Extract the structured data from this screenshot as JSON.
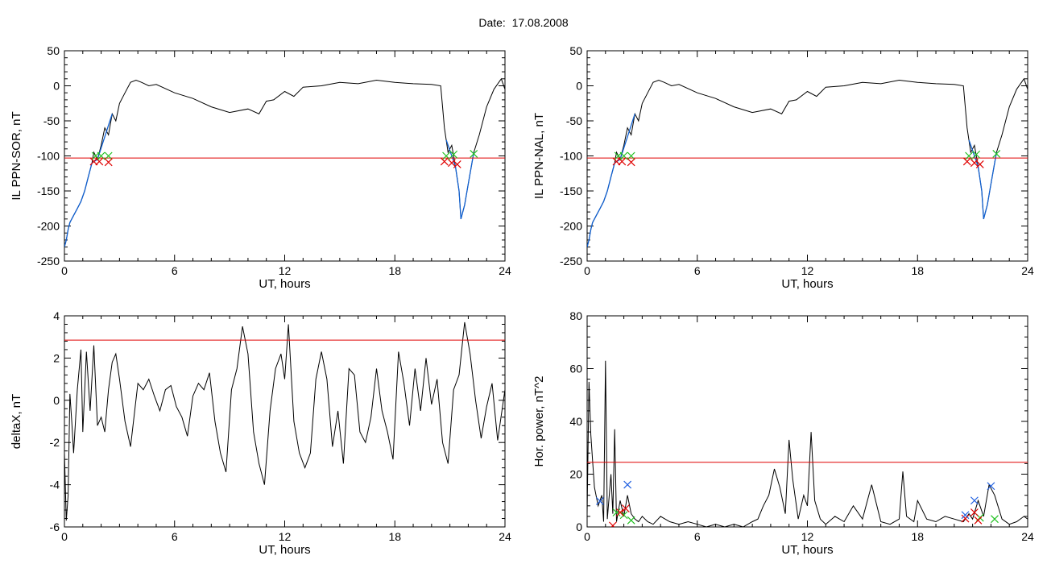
{
  "page": {
    "title": "Date:  17.08.2008"
  },
  "colors": {
    "signal": "#000000",
    "threshold": "#e00000",
    "below": "#1060d0",
    "x_red": "#e00000",
    "x_green": "#20c020",
    "x_blue": "#2060e0"
  },
  "chart_data": [
    {
      "type": "line",
      "name": "sor",
      "ylabel": "IL PPN-SOR, nT",
      "xlabel": "UT, hours",
      "xlim": [
        0,
        24
      ],
      "ylim": [
        -250,
        50
      ],
      "xticks": [
        0,
        6,
        12,
        18,
        24
      ],
      "yticks": [
        -250,
        -200,
        -150,
        -100,
        -50,
        0,
        50
      ],
      "threshold": -103,
      "x": [
        0,
        0.1,
        0.2,
        0.3,
        0.5,
        0.7,
        0.9,
        1.1,
        1.3,
        1.5,
        1.6,
        1.8,
        2.0,
        2.2,
        2.4,
        2.6,
        2.8,
        3.0,
        3.3,
        3.6,
        3.9,
        4.2,
        4.6,
        5.0,
        6,
        7,
        8,
        9,
        10,
        10.6,
        11,
        11.4,
        12,
        12.5,
        13,
        14,
        15,
        16,
        17,
        18,
        19,
        20,
        20.5,
        20.7,
        20.9,
        21.1,
        21.3,
        21.5,
        21.6,
        21.8,
        22.0,
        22.3,
        22.6,
        23.0,
        23.4,
        23.8,
        24
      ],
      "y": [
        -230,
        -220,
        -205,
        -195,
        -185,
        -175,
        -165,
        -150,
        -130,
        -110,
        -95,
        -105,
        -85,
        -60,
        -70,
        -40,
        -50,
        -25,
        -10,
        5,
        8,
        5,
        0,
        2,
        -10,
        -18,
        -30,
        -38,
        -33,
        -40,
        -22,
        -20,
        -8,
        -15,
        -2,
        0,
        5,
        3,
        8,
        5,
        3,
        2,
        0,
        -60,
        -95,
        -85,
        -115,
        -150,
        -190,
        -170,
        -140,
        -95,
        -70,
        -30,
        -5,
        10,
        -5
      ],
      "below_segments": [
        [
          0,
          2.6
        ],
        [
          20.8,
          22.3
        ]
      ],
      "markers_red": [
        [
          1.6,
          -108
        ],
        [
          1.9,
          -108
        ],
        [
          2.4,
          -109
        ],
        [
          20.7,
          -108
        ],
        [
          21.1,
          -110
        ],
        [
          21.4,
          -112
        ]
      ],
      "markers_green": [
        [
          1.7,
          -100
        ],
        [
          2.0,
          -100
        ],
        [
          2.4,
          -100
        ],
        [
          20.8,
          -100
        ],
        [
          21.2,
          -98
        ],
        [
          22.3,
          -97
        ]
      ]
    },
    {
      "type": "line",
      "name": "nal",
      "ylabel": "IL PPN-NAL, nT",
      "xlabel": "UT, hours",
      "xlim": [
        0,
        24
      ],
      "ylim": [
        -250,
        50
      ],
      "xticks": [
        0,
        6,
        12,
        18,
        24
      ],
      "yticks": [
        -250,
        -200,
        -150,
        -100,
        -50,
        0,
        50
      ],
      "threshold": -103,
      "x": [
        0,
        0.1,
        0.2,
        0.3,
        0.5,
        0.7,
        0.9,
        1.1,
        1.3,
        1.5,
        1.6,
        1.8,
        2.0,
        2.2,
        2.4,
        2.6,
        2.8,
        3.0,
        3.3,
        3.6,
        3.9,
        4.2,
        4.6,
        5.0,
        6,
        7,
        8,
        9,
        10,
        10.6,
        11,
        11.4,
        12,
        12.5,
        13,
        14,
        15,
        16,
        17,
        18,
        19,
        20,
        20.5,
        20.7,
        20.9,
        21.1,
        21.3,
        21.5,
        21.6,
        21.8,
        22.0,
        22.3,
        22.6,
        23.0,
        23.4,
        23.8,
        24
      ],
      "y": [
        -230,
        -220,
        -205,
        -195,
        -185,
        -175,
        -165,
        -150,
        -130,
        -110,
        -95,
        -105,
        -85,
        -60,
        -70,
        -40,
        -50,
        -25,
        -10,
        5,
        8,
        5,
        0,
        2,
        -10,
        -18,
        -30,
        -38,
        -33,
        -40,
        -22,
        -20,
        -8,
        -15,
        -2,
        0,
        5,
        3,
        8,
        5,
        3,
        2,
        0,
        -60,
        -95,
        -85,
        -115,
        -150,
        -190,
        -170,
        -140,
        -95,
        -70,
        -30,
        -5,
        10,
        -5
      ],
      "below_segments": [
        [
          0,
          2.6
        ],
        [
          20.8,
          22.3
        ]
      ],
      "markers_red": [
        [
          1.6,
          -108
        ],
        [
          1.9,
          -108
        ],
        [
          2.4,
          -109
        ],
        [
          20.7,
          -108
        ],
        [
          21.1,
          -110
        ],
        [
          21.4,
          -112
        ]
      ],
      "markers_green": [
        [
          1.7,
          -100
        ],
        [
          2.0,
          -100
        ],
        [
          2.4,
          -100
        ],
        [
          20.8,
          -100
        ],
        [
          21.2,
          -98
        ],
        [
          22.3,
          -97
        ]
      ]
    },
    {
      "type": "line",
      "name": "deltax",
      "ylabel": "deltaX, nT",
      "xlabel": "UT, hours",
      "xlim": [
        0,
        24
      ],
      "ylim": [
        -6,
        4
      ],
      "xticks": [
        0,
        6,
        12,
        18,
        24
      ],
      "yticks": [
        -6,
        -4,
        -2,
        0,
        2,
        4
      ],
      "threshold": 2.85,
      "x": [
        0,
        0.1,
        0.2,
        0.3,
        0.4,
        0.5,
        0.7,
        0.9,
        1.0,
        1.2,
        1.4,
        1.6,
        1.8,
        2.0,
        2.2,
        2.4,
        2.6,
        2.8,
        3.0,
        3.3,
        3.6,
        4.0,
        4.3,
        4.6,
        4.9,
        5.2,
        5.5,
        5.8,
        6.1,
        6.4,
        6.7,
        7.0,
        7.3,
        7.6,
        7.9,
        8.2,
        8.5,
        8.8,
        9.1,
        9.4,
        9.7,
        10.0,
        10.3,
        10.6,
        10.9,
        11.2,
        11.5,
        11.8,
        12.0,
        12.2,
        12.5,
        12.8,
        13.1,
        13.4,
        13.7,
        14.0,
        14.3,
        14.6,
        14.9,
        15.2,
        15.5,
        15.8,
        16.1,
        16.4,
        16.7,
        17.0,
        17.3,
        17.6,
        17.9,
        18.2,
        18.5,
        18.8,
        19.1,
        19.4,
        19.7,
        20.0,
        20.3,
        20.6,
        20.9,
        21.2,
        21.5,
        21.8,
        22.1,
        22.4,
        22.7,
        23.0,
        23.3,
        23.6,
        24
      ],
      "y": [
        -2.5,
        -5.7,
        -4.5,
        0.3,
        -1.0,
        -2.5,
        0.5,
        2.4,
        -1.5,
        2.3,
        -0.5,
        2.6,
        -1.2,
        -0.8,
        -1.5,
        0.5,
        1.8,
        2.2,
        1.0,
        -1.0,
        -2.2,
        0.8,
        0.5,
        1.0,
        0.2,
        -0.5,
        0.5,
        0.7,
        -0.3,
        -0.8,
        -1.7,
        0.2,
        0.8,
        0.5,
        1.3,
        -1.0,
        -2.5,
        -3.4,
        0.5,
        1.5,
        3.5,
        2.2,
        -1.5,
        -3.0,
        -4.0,
        -0.5,
        1.5,
        2.2,
        1.0,
        3.6,
        -1.0,
        -2.5,
        -3.2,
        -2.5,
        1.0,
        2.3,
        1.0,
        -2.2,
        -0.5,
        -3.0,
        1.5,
        1.2,
        -1.5,
        -2.0,
        -0.8,
        1.5,
        -0.5,
        -1.5,
        -2.8,
        2.3,
        0.8,
        -1.2,
        1.5,
        -0.5,
        2.0,
        -0.2,
        1.0,
        -2.0,
        -3.0,
        0.5,
        1.2,
        3.7,
        2.2,
        0.0,
        -1.8,
        -0.3,
        0.8,
        -1.9,
        0.5
      ]
    },
    {
      "type": "line",
      "name": "power",
      "ylabel": "Hor. power, nT^2",
      "xlabel": "UT, hours",
      "xlim": [
        0,
        24
      ],
      "ylim": [
        0,
        80
      ],
      "xticks": [
        0,
        6,
        12,
        18,
        24
      ],
      "yticks": [
        0,
        20,
        40,
        60,
        80
      ],
      "threshold": 24.5,
      "x": [
        0,
        0.1,
        0.2,
        0.3,
        0.4,
        0.6,
        0.8,
        0.9,
        1.0,
        1.1,
        1.3,
        1.4,
        1.5,
        1.6,
        1.8,
        2.0,
        2.2,
        2.4,
        2.6,
        2.8,
        3.0,
        3.3,
        3.6,
        4.0,
        4.5,
        5.0,
        5.5,
        6.0,
        6.5,
        7.0,
        7.5,
        8.0,
        8.5,
        9.0,
        9.3,
        9.6,
        9.9,
        10.2,
        10.5,
        10.8,
        11.0,
        11.2,
        11.5,
        11.8,
        12.0,
        12.2,
        12.4,
        12.7,
        13.0,
        13.5,
        14.0,
        14.5,
        15.0,
        15.5,
        16.0,
        16.5,
        17.0,
        17.2,
        17.4,
        17.8,
        18.0,
        18.5,
        19.0,
        19.5,
        20.0,
        20.5,
        20.8,
        21.0,
        21.3,
        21.6,
        21.9,
        22.2,
        22.6,
        23.0,
        23.4,
        23.8,
        24
      ],
      "y": [
        5,
        55,
        35,
        25,
        15,
        8,
        12,
        2,
        63,
        3,
        20,
        5,
        37,
        2,
        10,
        4,
        12,
        5,
        3,
        2,
        4,
        2,
        1,
        4,
        2,
        1,
        2,
        1,
        0,
        1,
        0,
        1,
        0,
        2,
        3,
        8,
        12,
        22,
        15,
        5,
        33,
        18,
        3,
        12,
        8,
        36,
        10,
        3,
        1,
        4,
        2,
        8,
        3,
        16,
        2,
        1,
        3,
        21,
        4,
        2,
        10,
        3,
        2,
        4,
        3,
        2,
        5,
        3,
        10,
        4,
        16,
        12,
        3,
        1,
        2,
        4,
        3
      ],
      "markers_red": [
        [
          1.4,
          0.5
        ],
        [
          1.8,
          5.5
        ],
        [
          2.1,
          7.0
        ],
        [
          20.6,
          3.2
        ],
        [
          21.1,
          5.5
        ],
        [
          21.3,
          2.5
        ]
      ],
      "markers_green": [
        [
          1.6,
          5.5
        ],
        [
          2.0,
          4.5
        ],
        [
          2.4,
          2.5
        ],
        [
          21.4,
          3.5
        ],
        [
          22.2,
          3.0
        ]
      ],
      "markers_blue": [
        [
          0.7,
          9.8
        ],
        [
          2.2,
          16.0
        ],
        [
          20.6,
          4.5
        ],
        [
          21.1,
          10.0
        ],
        [
          22.0,
          15.5
        ]
      ]
    }
  ]
}
